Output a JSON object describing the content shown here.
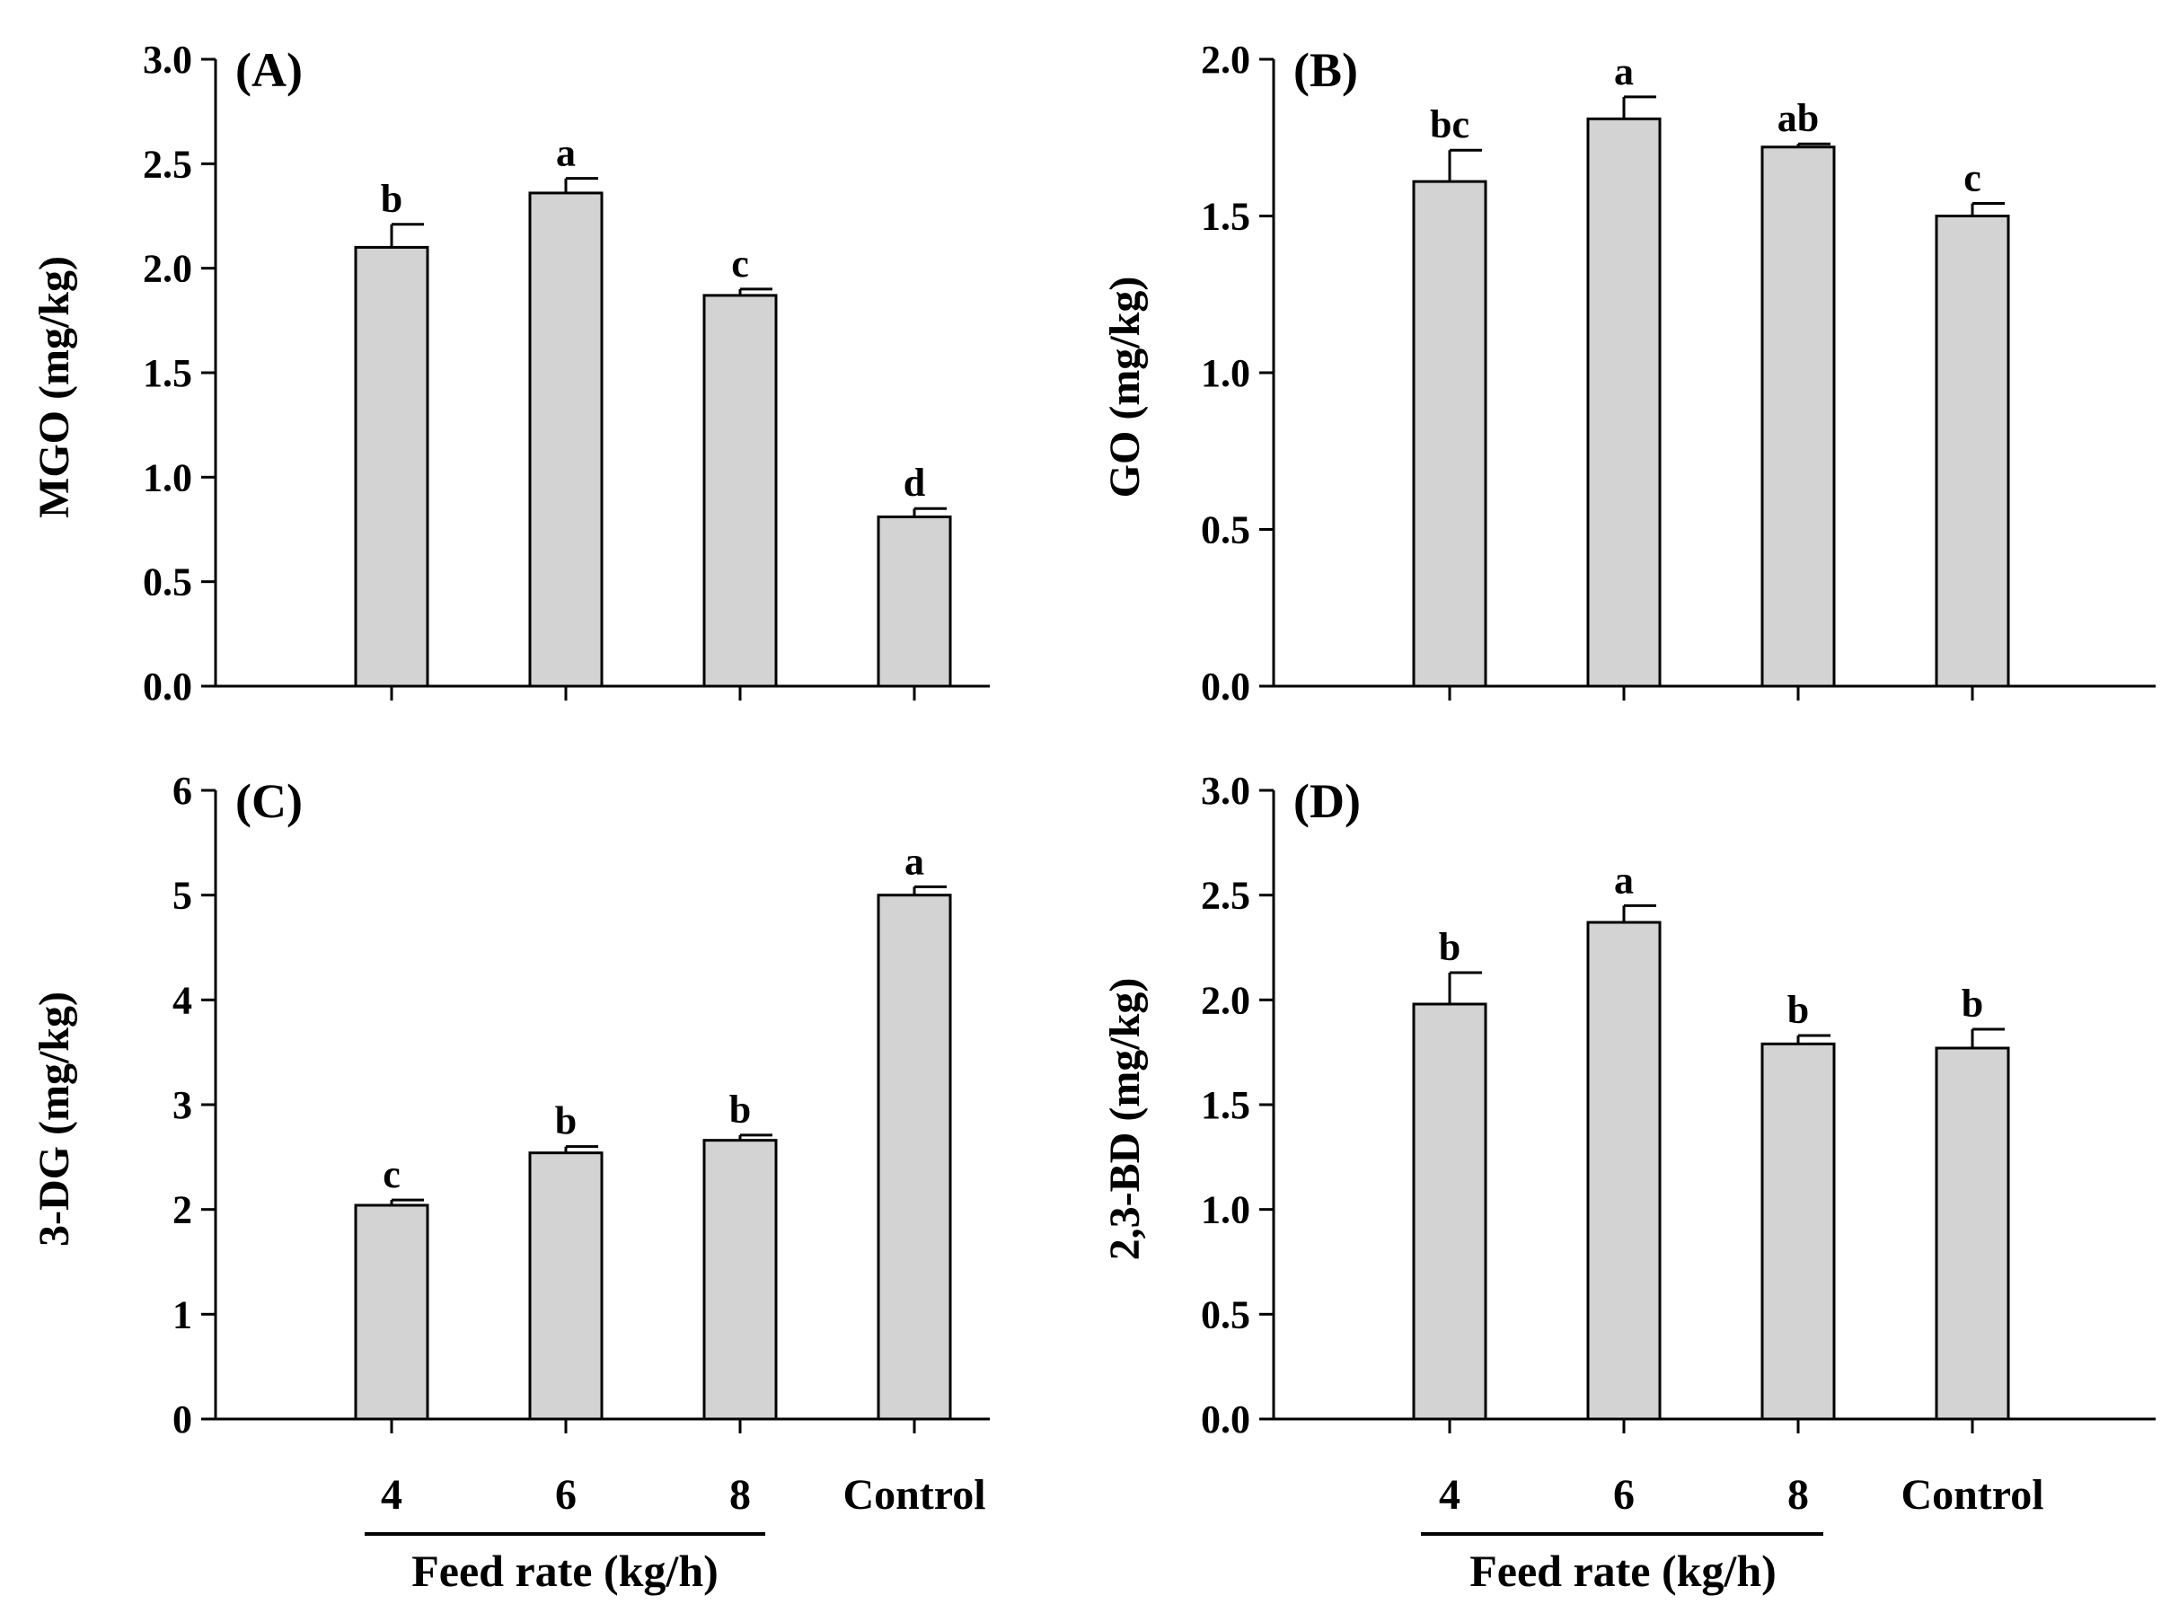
{
  "colors": {
    "bar_fill": "#d3d3d3",
    "stroke": "#000000",
    "background": "#ffffff"
  },
  "x_axis": {
    "categories": [
      "4",
      "6",
      "8",
      "Control"
    ],
    "group_label": "Feed rate (kg/h)"
  },
  "chart_data": [
    {
      "type": "bar",
      "panel": "(A)",
      "ylabel": "MGO (mg/kg)",
      "ylim": [
        0,
        3.0
      ],
      "yticks": [
        "0.0",
        "0.5",
        "1.0",
        "1.5",
        "2.0",
        "2.5",
        "3.0"
      ],
      "categories": [
        "4",
        "6",
        "8",
        "Control"
      ],
      "values": [
        2.1,
        2.36,
        1.87,
        0.81
      ],
      "errors": [
        0.11,
        0.07,
        0.03,
        0.04
      ],
      "letters": [
        "b",
        "a",
        "c",
        "d"
      ],
      "grid": false
    },
    {
      "type": "bar",
      "panel": "(B)",
      "ylabel": "GO (mg/kg)",
      "ylim": [
        0,
        2.0
      ],
      "yticks": [
        "0.0",
        "0.5",
        "1.0",
        "1.5",
        "2.0"
      ],
      "categories": [
        "4",
        "6",
        "8",
        "Control"
      ],
      "values": [
        1.61,
        1.81,
        1.72,
        1.5
      ],
      "errors": [
        0.1,
        0.07,
        0.01,
        0.04
      ],
      "letters": [
        "bc",
        "a",
        "ab",
        "c"
      ],
      "grid": false
    },
    {
      "type": "bar",
      "panel": "(C)",
      "ylabel": "3-DG (mg/kg)",
      "ylim": [
        0,
        6
      ],
      "yticks": [
        "0",
        "1",
        "2",
        "3",
        "4",
        "5",
        "6"
      ],
      "categories": [
        "4",
        "6",
        "8",
        "Control"
      ],
      "values": [
        2.04,
        2.54,
        2.66,
        5.0
      ],
      "errors": [
        0.05,
        0.06,
        0.05,
        0.08
      ],
      "letters": [
        "c",
        "b",
        "b",
        "a"
      ],
      "grid": false
    },
    {
      "type": "bar",
      "panel": "(D)",
      "ylabel": "2,3-BD (mg/kg)",
      "ylim": [
        0,
        3.0
      ],
      "yticks": [
        "0.0",
        "0.5",
        "1.0",
        "1.5",
        "2.0",
        "2.5",
        "3.0"
      ],
      "categories": [
        "4",
        "6",
        "8",
        "Control"
      ],
      "values": [
        1.98,
        2.37,
        1.79,
        1.77
      ],
      "errors": [
        0.15,
        0.08,
        0.04,
        0.09
      ],
      "letters": [
        "b",
        "a",
        "b",
        "b"
      ],
      "grid": false
    }
  ]
}
